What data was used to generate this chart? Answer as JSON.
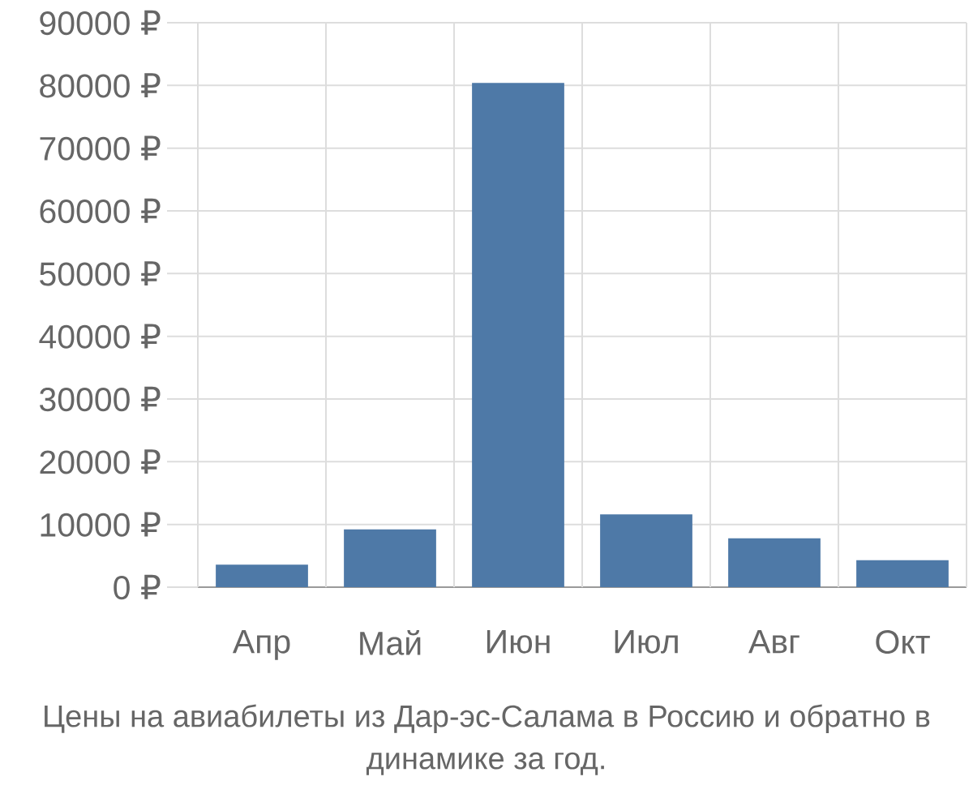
{
  "chart_data": {
    "type": "bar",
    "title": "Цены на авиабилеты из Дар-эс-Салама в Россию и обратно в динамике за год.",
    "categories": [
      "Апр",
      "Май",
      "Июн",
      "Июл",
      "Авг",
      "Окт"
    ],
    "values": [
      3600,
      9200,
      80400,
      11600,
      7800,
      4300
    ],
    "color": "#4e79a7",
    "ylim": [
      0,
      90000
    ],
    "yticks": [
      {
        "value": 0,
        "label": "0 ₽"
      },
      {
        "value": 10000,
        "label": "10000 ₽"
      },
      {
        "value": 20000,
        "label": "20000 ₽"
      },
      {
        "value": 30000,
        "label": "30000 ₽"
      },
      {
        "value": 40000,
        "label": "40000 ₽"
      },
      {
        "value": 50000,
        "label": "50000 ₽"
      },
      {
        "value": 60000,
        "label": "60000 ₽"
      },
      {
        "value": 70000,
        "label": "70000 ₽"
      },
      {
        "value": 80000,
        "label": "80000 ₽"
      },
      {
        "value": 90000,
        "label": "90000 ₽"
      }
    ],
    "grid": true
  }
}
